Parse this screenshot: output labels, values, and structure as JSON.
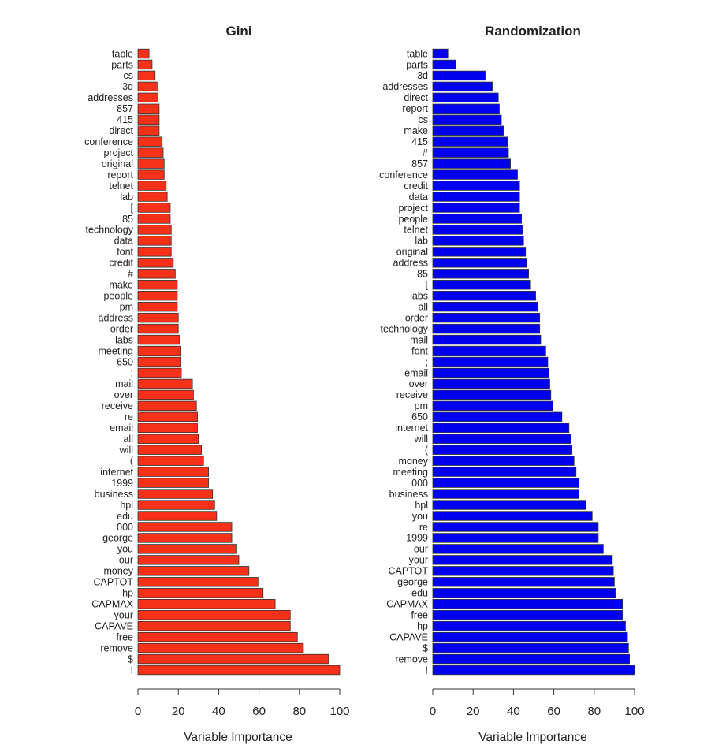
{
  "colors": {
    "gini_bar": "#f5311a",
    "randomization_bar": "#0000ee",
    "bar_stroke": "#333333",
    "axis": "#333333"
  },
  "chart_data": [
    {
      "type": "bar",
      "orientation": "horizontal",
      "title": "Gini",
      "xlabel": "Variable Importance",
      "ylabel": "",
      "xlim": [
        0,
        100
      ],
      "xticks": [
        0,
        20,
        40,
        60,
        80,
        100
      ],
      "grid": false,
      "categories": [
        "table",
        "parts",
        "cs",
        "3d",
        "addresses",
        "857",
        "415",
        "direct",
        "conference",
        "project",
        "original",
        "report",
        "telnet",
        "lab",
        "[",
        "85",
        "technology",
        "data",
        "font",
        "credit",
        "#",
        "make",
        "people",
        "pm",
        "address",
        "order",
        "labs",
        "meeting",
        "650",
        ";",
        "mail",
        "over",
        "receive",
        "re",
        "email",
        "all",
        "will",
        "(",
        "internet",
        "1999",
        "business",
        "hpl",
        "edu",
        "000",
        "george",
        "you",
        "our",
        "money",
        "CAPTOT",
        "hp",
        "CAPMAX",
        "your",
        "CAPAVE",
        "free",
        "remove",
        "$",
        "!"
      ],
      "values": [
        5.5,
        7,
        8.5,
        9.5,
        10,
        10.5,
        10.5,
        10.5,
        12,
        12.5,
        13,
        13,
        14,
        14.5,
        16,
        16,
        16.5,
        16.5,
        16.5,
        17.5,
        18.5,
        19.5,
        19.5,
        19.5,
        20,
        20,
        20.5,
        21,
        21,
        21.5,
        27,
        27.5,
        29,
        29.5,
        29.5,
        30,
        31.5,
        32.5,
        35,
        35,
        37,
        38,
        39,
        46.5,
        46.5,
        49,
        50,
        55,
        59.5,
        62,
        68,
        75.5,
        75.5,
        79,
        82,
        94.5,
        100
      ]
    },
    {
      "type": "bar",
      "orientation": "horizontal",
      "title": "Randomization",
      "xlabel": "Variable Importance",
      "ylabel": "",
      "xlim": [
        0,
        100
      ],
      "xticks": [
        0,
        20,
        40,
        60,
        80,
        100
      ],
      "grid": false,
      "categories": [
        "table",
        "parts",
        "3d",
        "addresses",
        "direct",
        "report",
        "cs",
        "make",
        "415",
        "#",
        "857",
        "conference",
        "credit",
        "data",
        "project",
        "people",
        "telnet",
        "lab",
        "original",
        "address",
        "85",
        "[",
        "labs",
        "all",
        "order",
        "technology",
        "mail",
        "font",
        ";",
        "email",
        "over",
        "receive",
        "pm",
        "650",
        "internet",
        "will",
        "(",
        "money",
        "meeting",
        "000",
        "business",
        "hpl",
        "you",
        "re",
        "1999",
        "our",
        "your",
        "CAPTOT",
        "george",
        "edu",
        "CAPMAX",
        "free",
        "hp",
        "CAPAVE",
        "$",
        "remove",
        "!"
      ],
      "values": [
        7.5,
        11.5,
        26,
        29.5,
        32.5,
        33,
        34,
        35,
        37,
        37.5,
        38.5,
        42,
        43,
        43,
        43,
        44,
        44.5,
        45,
        46,
        46.5,
        47.5,
        48.5,
        51,
        52,
        53,
        53,
        53.5,
        56,
        57,
        57.5,
        58,
        58.5,
        59.5,
        64,
        67.5,
        68.5,
        69,
        70,
        71,
        72.5,
        72.5,
        76,
        79,
        82,
        82,
        84.5,
        89,
        89.5,
        90,
        90.5,
        94,
        94,
        95.5,
        96.5,
        97,
        97.5,
        100
      ]
    }
  ]
}
